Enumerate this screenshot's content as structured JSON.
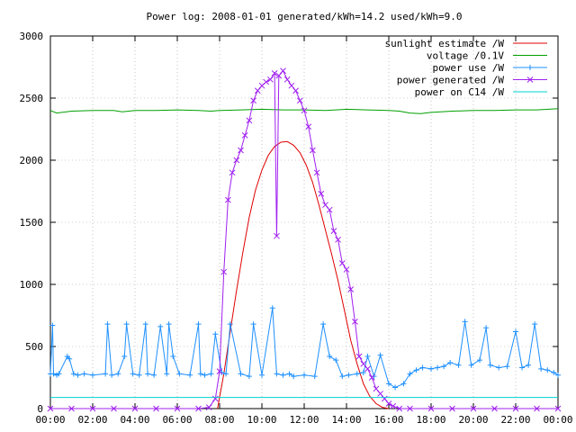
{
  "chart_data": {
    "type": "line",
    "title": "Power log: 2008-01-01 generated/kWh=14.2 used/kWh=9.0",
    "xlabel": "",
    "ylabel": "",
    "xlim": [
      0,
      24
    ],
    "ylim": [
      0,
      3000
    ],
    "x_ticks": [
      0,
      2,
      4,
      6,
      8,
      10,
      12,
      14,
      16,
      18,
      20,
      22,
      24
    ],
    "x_tick_labels": [
      "00:00",
      "02:00",
      "04:00",
      "06:00",
      "08:00",
      "10:00",
      "12:00",
      "14:00",
      "16:00",
      "18:00",
      "20:00",
      "22:00",
      "00:00"
    ],
    "y_ticks": [
      0,
      500,
      1000,
      1500,
      2000,
      2500,
      3000
    ],
    "y_tick_labels": [
      "0",
      "500",
      "1000",
      "1500",
      "2000",
      "2500",
      "3000"
    ],
    "grid": true,
    "legend_position": "top-right",
    "series": [
      {
        "name": "sunlight estimate /W",
        "color": "#e00000",
        "style": "line",
        "x": [
          7.9,
          8.2,
          8.5,
          8.8,
          9.1,
          9.4,
          9.7,
          10.0,
          10.3,
          10.6,
          10.9,
          11.2,
          11.5,
          11.8,
          12.1,
          12.4,
          12.7,
          13.0,
          13.3,
          13.6,
          13.9,
          14.2,
          14.5,
          14.8,
          15.1,
          15.4,
          15.7,
          16.0
        ],
        "y": [
          0,
          280,
          620,
          950,
          1260,
          1540,
          1760,
          1920,
          2040,
          2110,
          2145,
          2150,
          2120,
          2060,
          1960,
          1820,
          1640,
          1440,
          1240,
          1030,
          790,
          550,
          360,
          200,
          100,
          40,
          10,
          0
        ]
      },
      {
        "name": "voltage /0.1V",
        "color": "#00a000",
        "style": "line",
        "x": [
          0,
          0.3,
          1,
          2,
          3,
          3.4,
          4,
          5,
          6,
          7,
          7.6,
          8,
          9,
          10,
          11,
          12,
          13,
          14,
          15,
          16,
          16.5,
          17,
          17.5,
          18,
          19,
          20,
          21,
          22,
          23,
          24
        ],
        "y": [
          2400,
          2380,
          2395,
          2400,
          2400,
          2390,
          2400,
          2400,
          2405,
          2400,
          2395,
          2400,
          2405,
          2410,
          2405,
          2405,
          2400,
          2410,
          2405,
          2400,
          2395,
          2380,
          2375,
          2385,
          2395,
          2400,
          2400,
          2405,
          2405,
          2415
        ]
      },
      {
        "name": "power use /W",
        "color": "#1e90ff",
        "style": "points",
        "x": [
          0,
          0.1,
          0.15,
          0.3,
          0.4,
          0.8,
          0.9,
          1.1,
          1.3,
          1.6,
          2.0,
          2.6,
          2.7,
          2.9,
          3.2,
          3.5,
          3.6,
          3.9,
          4.2,
          4.5,
          4.6,
          4.9,
          5.2,
          5.5,
          5.6,
          5.8,
          6.1,
          6.6,
          7.0,
          7.1,
          7.3,
          7.6,
          7.8,
          8.1,
          8.3,
          8.5,
          9.0,
          9.4,
          9.6,
          10.0,
          10.5,
          10.7,
          11.0,
          11.3,
          11.5,
          12.0,
          12.5,
          12.9,
          13.2,
          13.5,
          13.8,
          14.1,
          14.5,
          14.8,
          15.0,
          15.3,
          15.6,
          16.0,
          16.3,
          16.7,
          17.0,
          17.3,
          17.6,
          18.0,
          18.3,
          18.6,
          18.9,
          19.3,
          19.6,
          19.9,
          20.3,
          20.6,
          20.8,
          21.2,
          21.6,
          22.0,
          22.3,
          22.6,
          22.9,
          23.2,
          23.5,
          23.8,
          24.0
        ],
        "y": [
          280,
          670,
          280,
          270,
          280,
          420,
          400,
          280,
          270,
          280,
          270,
          280,
          680,
          270,
          280,
          420,
          680,
          280,
          270,
          680,
          280,
          270,
          660,
          280,
          680,
          420,
          280,
          270,
          680,
          280,
          270,
          280,
          600,
          290,
          280,
          680,
          280,
          260,
          680,
          270,
          810,
          280,
          270,
          280,
          260,
          270,
          260,
          680,
          420,
          390,
          260,
          270,
          280,
          290,
          420,
          260,
          430,
          200,
          170,
          200,
          280,
          310,
          330,
          320,
          330,
          340,
          370,
          350,
          700,
          350,
          390,
          650,
          350,
          330,
          340,
          620,
          330,
          350,
          680,
          320,
          310,
          290,
          270
        ]
      },
      {
        "name": "power generated /W",
        "color": "#a020f0",
        "style": "points",
        "x": [
          0,
          1,
          2,
          3,
          4,
          5,
          6,
          7,
          7.5,
          7.8,
          8.0,
          8.2,
          8.4,
          8.6,
          8.8,
          9.0,
          9.2,
          9.4,
          9.6,
          9.8,
          10.0,
          10.2,
          10.4,
          10.6,
          10.7,
          10.8,
          11.0,
          11.2,
          11.4,
          11.6,
          11.8,
          12.0,
          12.2,
          12.4,
          12.6,
          12.8,
          13.0,
          13.2,
          13.4,
          13.6,
          13.8,
          14.0,
          14.2,
          14.4,
          14.6,
          14.8,
          15.0,
          15.2,
          15.4,
          15.6,
          15.8,
          16.0,
          16.2,
          16.5,
          17,
          18,
          19,
          20,
          21,
          22,
          23,
          24
        ],
        "y": [
          0,
          0,
          0,
          0,
          0,
          0,
          0,
          0,
          10,
          80,
          300,
          1100,
          1680,
          1900,
          2000,
          2080,
          2200,
          2320,
          2480,
          2560,
          2600,
          2630,
          2650,
          2700,
          1390,
          2680,
          2720,
          2650,
          2600,
          2560,
          2480,
          2400,
          2270,
          2080,
          1900,
          1730,
          1640,
          1600,
          1430,
          1360,
          1170,
          1120,
          960,
          700,
          420,
          360,
          320,
          250,
          160,
          120,
          80,
          40,
          20,
          0,
          0,
          0,
          0,
          0,
          0,
          0,
          0,
          0
        ]
      },
      {
        "name": "power on C14 /W",
        "color": "#00d0d0",
        "style": "line",
        "x": [
          0,
          24
        ],
        "y": [
          90,
          90
        ]
      }
    ]
  }
}
